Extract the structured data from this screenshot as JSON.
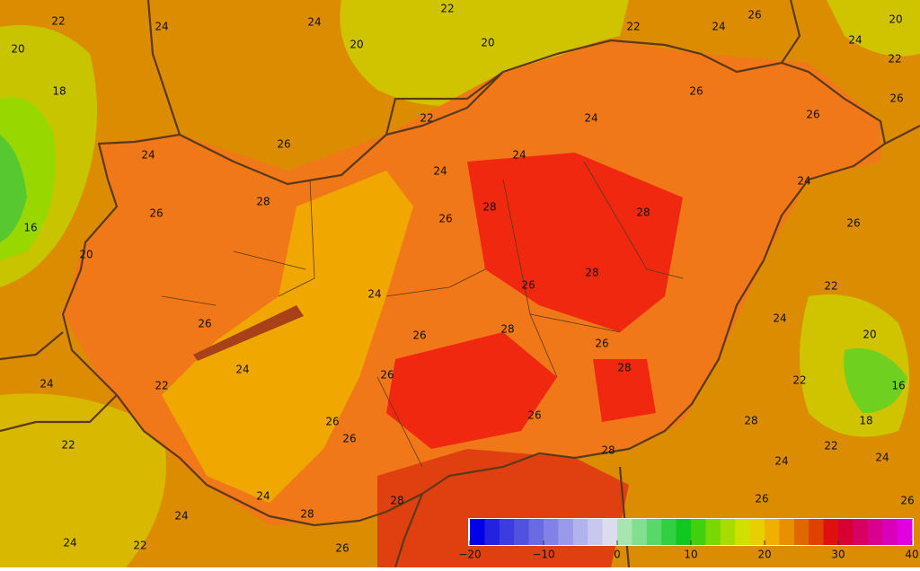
{
  "contour_labels": [
    22,
    24,
    20,
    24,
    20,
    22,
    20,
    22,
    24,
    26,
    20,
    24,
    22,
    26,
    18,
    26,
    22,
    24,
    26,
    26,
    24,
    24,
    24,
    24,
    28,
    26,
    28,
    26,
    28,
    26,
    16,
    20,
    28,
    26,
    22,
    24,
    26,
    24,
    26,
    28,
    26,
    20,
    28,
    24,
    26,
    22,
    16,
    24,
    22,
    26,
    26,
    26,
    28,
    18,
    22,
    28,
    22,
    24,
    24,
    24,
    26,
    28,
    28,
    26,
    24,
    24,
    22,
    26
  ],
  "colorbar": {
    "lim": [
      -20,
      40
    ],
    "ticks": [
      {
        "value": -20,
        "label": "−20"
      },
      {
        "value": -10,
        "label": "−10"
      },
      0,
      10,
      20,
      30,
      40
    ],
    "colors": [
      "#0000e6",
      "#2222e0",
      "#3c3ce0",
      "#5252e0",
      "#6a6ae2",
      "#8282e6",
      "#9a9aea",
      "#b2b2ec",
      "#c8c8ee",
      "#dcdcee",
      "#a8e6b0",
      "#80e090",
      "#58d868",
      "#30d040",
      "#10c820",
      "#40d010",
      "#78d800",
      "#a8dc00",
      "#d0e000",
      "#e8d000",
      "#f0b000",
      "#e89000",
      "#e06800",
      "#e04000",
      "#e01010",
      "#d80030",
      "#d80060",
      "#d8008c",
      "#d800b8",
      "#e000e0"
    ]
  }
}
